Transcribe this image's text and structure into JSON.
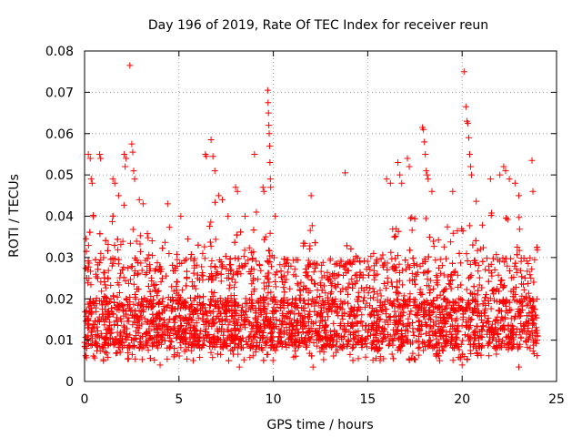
{
  "chart_data": {
    "type": "scatter",
    "title": "Day 196 of 2019, Rate Of TEC Index for receiver reun",
    "xlabel": "GPS time / hours",
    "ylabel": "ROTI / TECUs",
    "xlim": [
      0,
      25
    ],
    "ylim": [
      0,
      0.08
    ],
    "grid": true,
    "marker": "+",
    "series_color": "#ff0000",
    "x_ticks": [
      0,
      5,
      10,
      15,
      20,
      25
    ],
    "x_tick_labels": [
      "0",
      "5",
      "10",
      "15",
      "20",
      "25"
    ],
    "y_ticks": [
      0,
      0.01,
      0.02,
      0.03,
      0.04,
      0.05,
      0.06,
      0.07,
      0.08
    ],
    "y_tick_labels": [
      "0",
      "0.01",
      "0.02",
      "0.03",
      "0.04",
      "0.05",
      "0.06",
      "0.07",
      "0.08"
    ],
    "dense_band": {
      "x_range": [
        0,
        24
      ],
      "core_range": [
        0.008,
        0.02
      ],
      "spike_envelope": [
        [
          0.0,
          0.035
        ],
        [
          0.5,
          0.045
        ],
        [
          1.0,
          0.035
        ],
        [
          1.5,
          0.04
        ],
        [
          2.0,
          0.045
        ],
        [
          2.5,
          0.042
        ],
        [
          3.0,
          0.035
        ],
        [
          3.5,
          0.04
        ],
        [
          4.0,
          0.035
        ],
        [
          4.5,
          0.04
        ],
        [
          5.0,
          0.03
        ],
        [
          5.5,
          0.035
        ],
        [
          6.0,
          0.035
        ],
        [
          6.5,
          0.042
        ],
        [
          7.0,
          0.044
        ],
        [
          7.5,
          0.03
        ],
        [
          8.0,
          0.035
        ],
        [
          8.5,
          0.04
        ],
        [
          9.0,
          0.04
        ],
        [
          9.5,
          0.04
        ],
        [
          10.0,
          0.035
        ],
        [
          10.5,
          0.03
        ],
        [
          11.0,
          0.03
        ],
        [
          11.5,
          0.032
        ],
        [
          12.0,
          0.04
        ],
        [
          12.5,
          0.03
        ],
        [
          13.0,
          0.033
        ],
        [
          13.5,
          0.032
        ],
        [
          14.0,
          0.035
        ],
        [
          14.5,
          0.03
        ],
        [
          15.0,
          0.033
        ],
        [
          15.5,
          0.03
        ],
        [
          16.0,
          0.033
        ],
        [
          16.5,
          0.04
        ],
        [
          17.0,
          0.045
        ],
        [
          17.5,
          0.04
        ],
        [
          18.0,
          0.045
        ],
        [
          18.5,
          0.04
        ],
        [
          19.0,
          0.042
        ],
        [
          19.5,
          0.038
        ],
        [
          20.0,
          0.04
        ],
        [
          20.5,
          0.045
        ],
        [
          21.0,
          0.046
        ],
        [
          21.5,
          0.045
        ],
        [
          22.0,
          0.048
        ],
        [
          22.5,
          0.045
        ],
        [
          23.0,
          0.04
        ],
        [
          23.5,
          0.033
        ],
        [
          24.0,
          0.033
        ]
      ]
    },
    "outliers": [
      [
        0.2,
        0.055
      ],
      [
        0.3,
        0.054
      ],
      [
        0.35,
        0.049
      ],
      [
        0.4,
        0.048
      ],
      [
        0.8,
        0.055
      ],
      [
        0.85,
        0.054
      ],
      [
        1.5,
        0.049
      ],
      [
        1.6,
        0.048
      ],
      [
        1.8,
        0.045
      ],
      [
        2.1,
        0.055
      ],
      [
        2.15,
        0.052
      ],
      [
        2.2,
        0.054
      ],
      [
        2.4,
        0.0765
      ],
      [
        2.5,
        0.0575
      ],
      [
        2.55,
        0.0555
      ],
      [
        2.6,
        0.051
      ],
      [
        2.65,
        0.049
      ],
      [
        2.9,
        0.044
      ],
      [
        3.1,
        0.043
      ],
      [
        4.4,
        0.043
      ],
      [
        5.1,
        0.04
      ],
      [
        6.4,
        0.055
      ],
      [
        6.45,
        0.0545
      ],
      [
        6.7,
        0.0585
      ],
      [
        6.8,
        0.0545
      ],
      [
        6.9,
        0.051
      ],
      [
        7.1,
        0.045
      ],
      [
        7.3,
        0.044
      ],
      [
        7.6,
        0.04
      ],
      [
        8.0,
        0.047
      ],
      [
        8.1,
        0.046
      ],
      [
        8.5,
        0.04
      ],
      [
        9.0,
        0.055
      ],
      [
        9.1,
        0.041
      ],
      [
        9.45,
        0.047
      ],
      [
        9.5,
        0.046
      ],
      [
        9.7,
        0.0705
      ],
      [
        9.72,
        0.0675
      ],
      [
        9.74,
        0.065
      ],
      [
        9.76,
        0.062
      ],
      [
        9.78,
        0.06
      ],
      [
        9.8,
        0.057
      ],
      [
        9.82,
        0.053
      ],
      [
        9.84,
        0.049
      ],
      [
        9.86,
        0.047
      ],
      [
        10.1,
        0.04
      ],
      [
        12.0,
        0.045
      ],
      [
        13.8,
        0.0505
      ],
      [
        16.0,
        0.049
      ],
      [
        16.2,
        0.048
      ],
      [
        16.6,
        0.053
      ],
      [
        16.7,
        0.05
      ],
      [
        16.8,
        0.048
      ],
      [
        17.1,
        0.054
      ],
      [
        17.2,
        0.052
      ],
      [
        17.9,
        0.0615
      ],
      [
        17.95,
        0.061
      ],
      [
        18.0,
        0.058
      ],
      [
        18.05,
        0.055
      ],
      [
        18.1,
        0.051
      ],
      [
        18.15,
        0.05
      ],
      [
        18.2,
        0.049
      ],
      [
        18.4,
        0.046
      ],
      [
        19.5,
        0.046
      ],
      [
        20.1,
        0.075
      ],
      [
        20.2,
        0.0665
      ],
      [
        20.25,
        0.063
      ],
      [
        20.3,
        0.0625
      ],
      [
        20.35,
        0.059
      ],
      [
        20.4,
        0.055
      ],
      [
        20.45,
        0.052
      ],
      [
        20.5,
        0.05
      ],
      [
        21.5,
        0.049
      ],
      [
        22.0,
        0.05
      ],
      [
        22.2,
        0.052
      ],
      [
        22.3,
        0.051
      ],
      [
        22.5,
        0.049
      ],
      [
        22.8,
        0.048
      ],
      [
        23.0,
        0.045
      ],
      [
        23.7,
        0.0535
      ],
      [
        23.75,
        0.046
      ],
      [
        8.2,
        0.0035
      ],
      [
        12.1,
        0.0035
      ],
      [
        1.0,
        0.005
      ],
      [
        4.0,
        0.004
      ],
      [
        20.0,
        0.004
      ],
      [
        23.0,
        0.0035
      ]
    ]
  }
}
